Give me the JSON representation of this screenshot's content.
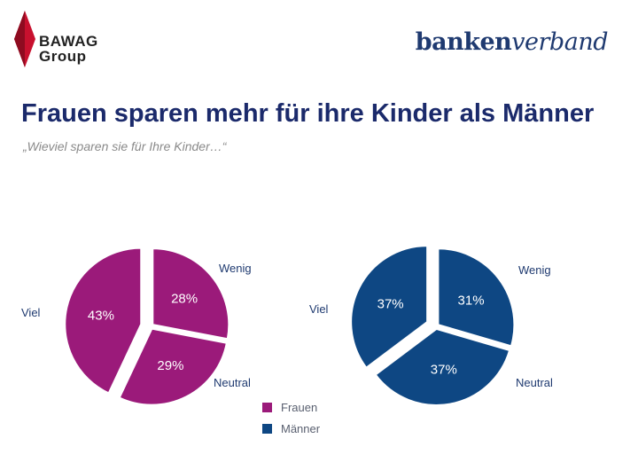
{
  "logos": {
    "bawag": {
      "line1": "BAWAG",
      "line2": "Group"
    },
    "bankenverband": {
      "part1": "banken",
      "part2": "verband"
    }
  },
  "title": "Frauen sparen mehr für ihre Kinder als Männer",
  "subtitle": "„Wieviel sparen sie für Ihre Kinder…“",
  "colors": {
    "frauen": "#9b1a7a",
    "maenner": "#0e4783"
  },
  "chart_data": [
    {
      "type": "pie",
      "name": "Frauen",
      "categories": [
        "Wenig",
        "Neutral",
        "Viel"
      ],
      "values": [
        28,
        29,
        43
      ],
      "labels": [
        "28%",
        "29%",
        "43%"
      ],
      "exploded": "Viel"
    },
    {
      "type": "pie",
      "name": "Männer",
      "categories": [
        "Wenig",
        "Neutral",
        "Viel"
      ],
      "values": [
        31,
        37,
        37
      ],
      "labels": [
        "31%",
        "37%",
        "37%"
      ],
      "exploded": "Viel"
    }
  ],
  "legend": [
    {
      "label": "Frauen",
      "color": "#9b1a7a"
    },
    {
      "label": "Männer",
      "color": "#0e4783"
    }
  ]
}
